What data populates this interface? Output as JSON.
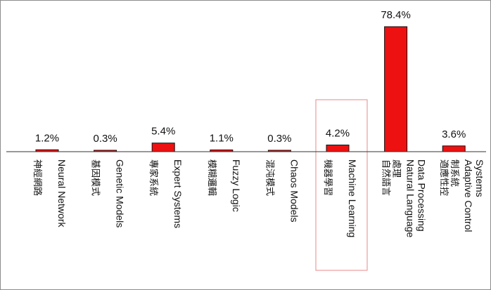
{
  "chart_data": {
    "type": "bar",
    "categories": [
      {
        "en": "Neural Network",
        "zh": "神經網路"
      },
      {
        "en": "Genetic Models",
        "zh": "基因模式"
      },
      {
        "en": "Expert Systems",
        "zh": "專家系統"
      },
      {
        "en": "Fuzzy Logic",
        "zh": "模糊邏輯"
      },
      {
        "en": "Chaos Models",
        "zh": "混沌模式"
      },
      {
        "en": "Machine Learning",
        "zh": "機器學習"
      },
      {
        "en": "Natural Language Data Processing",
        "zh": "自然語言處理"
      },
      {
        "en": "Adaptive Control Systems",
        "zh": "適應性控制系統"
      }
    ],
    "values": [
      1.2,
      0.3,
      5.4,
      1.1,
      0.3,
      4.2,
      78.4,
      3.6
    ],
    "value_labels": [
      "1.2%",
      "0.3%",
      "5.4%",
      "1.1%",
      "0.3%",
      "4.2%",
      "78.4%",
      "3.6%"
    ],
    "highlighted_category_index": 5,
    "ylim": [
      0,
      80
    ],
    "title": "",
    "xlabel": "",
    "ylabel": "",
    "grid": false,
    "legend": "none",
    "colors": {
      "bar_fill": "#ee1111",
      "bar_stroke": "#111111",
      "axis": "#333333",
      "highlight_box": "#e88888",
      "border": "#8c8c8c"
    }
  }
}
